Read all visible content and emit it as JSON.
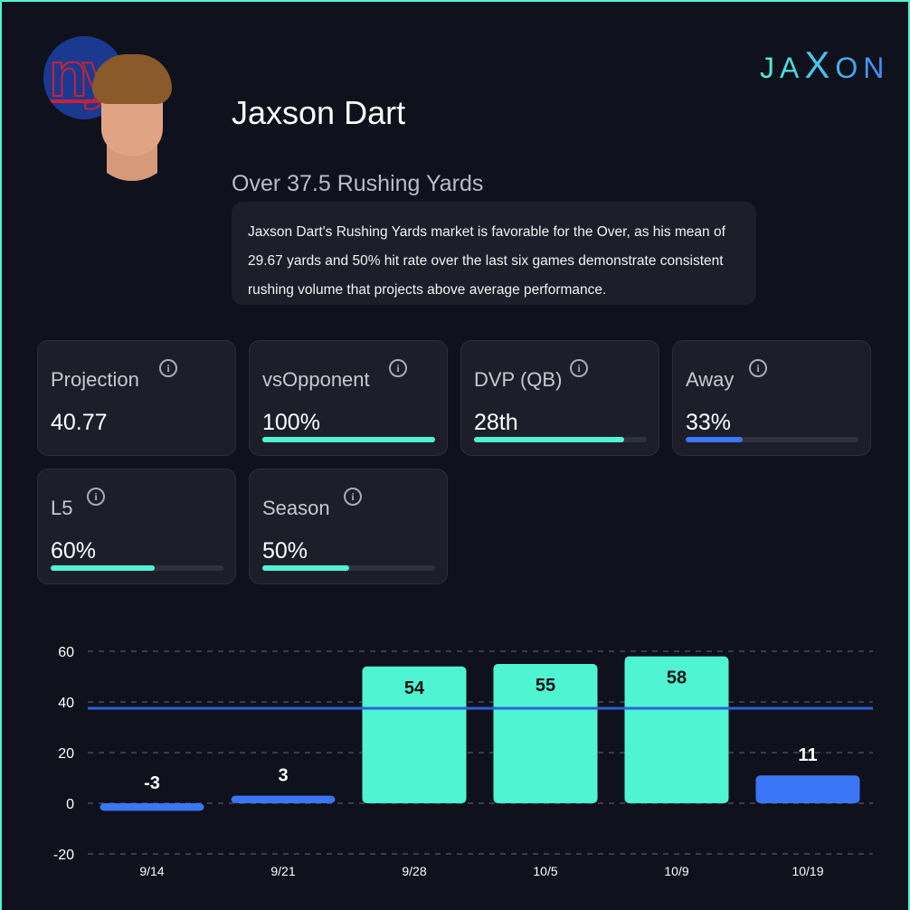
{
  "brand": {
    "logo_text_left": "JA",
    "logo_text_x": "X",
    "logo_text_right": "ON"
  },
  "team_logo_text": "ny",
  "player": {
    "name": "Jaxson Dart",
    "market": "Over 37.5 Rushing Yards",
    "summary": "Jaxson Dart's Rushing Yards market is favorable for the Over, as his mean of 29.67 yards and 50% hit rate over the last six games demonstrate consistent rushing volume that projects above average performance."
  },
  "colors": {
    "accent": "#4ff5d2",
    "blue": "#3b76f6",
    "line": "#2f5fd8"
  },
  "cards": [
    {
      "label": "Projection",
      "value": "40.77",
      "fill": null,
      "color": null
    },
    {
      "label": "vsOpponent",
      "value": "100%",
      "fill": 1.0,
      "color": "#4ff5d2"
    },
    {
      "label": "DVP (QB)",
      "value": "28th",
      "fill": 0.87,
      "color": "#4ff5d2"
    },
    {
      "label": "Away",
      "value": "33%",
      "fill": 0.33,
      "color": "#3b76f6"
    },
    {
      "label": "L5",
      "value": "60%",
      "fill": 0.6,
      "color": "#4ff5d2"
    },
    {
      "label": "Season",
      "value": "50%",
      "fill": 0.5,
      "color": "#4ff5d2"
    }
  ],
  "info_icon": "info-icon",
  "chart_data": {
    "type": "bar",
    "categories": [
      "9/14",
      "9/21",
      "9/28",
      "10/5",
      "10/9",
      "10/19"
    ],
    "values": [
      -3,
      3,
      54,
      55,
      58,
      11
    ],
    "yticks": [
      60,
      40,
      20,
      0,
      -20
    ],
    "ylim": [
      -20,
      60
    ],
    "reference_line": 37.5,
    "grid": true,
    "colors": {
      "over": "#4ff5d2",
      "under": "#3b76f6"
    }
  }
}
